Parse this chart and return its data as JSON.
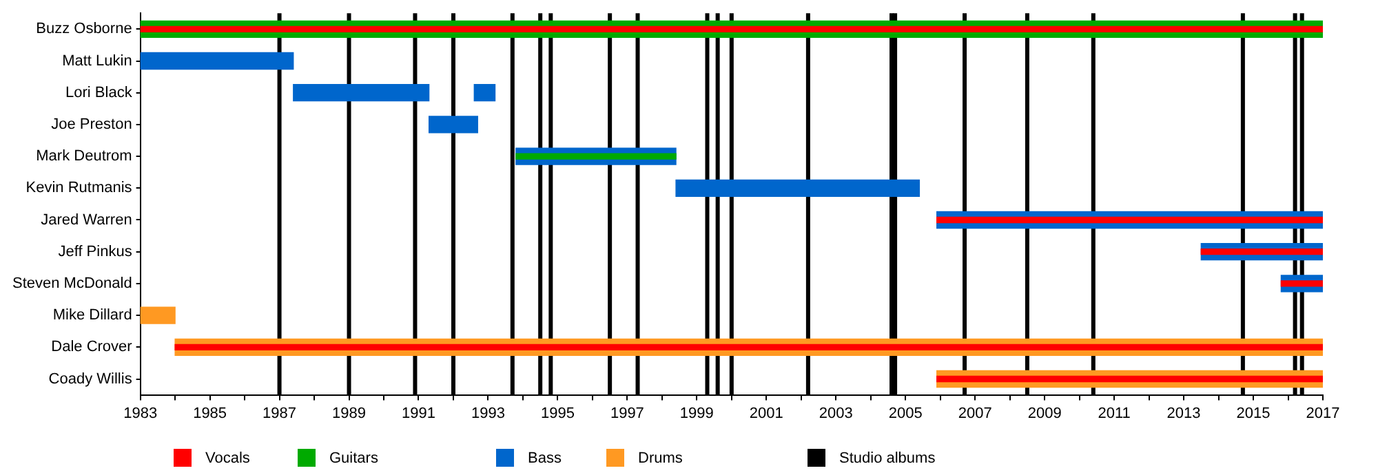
{
  "chart_data": {
    "type": "bar",
    "orientation": "horizontal",
    "legend": "bottom",
    "grid": false,
    "categories": [
      "Buzz Osborne",
      "Matt Lukin",
      "Lori Black",
      "Joe Preston",
      "Mark Deutrom",
      "Kevin Rutmanis",
      "Jared Warren",
      "Jeff Pinkus",
      "Steven McDonald",
      "Mike Dillard",
      "Dale Crover",
      "Coady Willis"
    ],
    "xlim": [
      1983,
      2017
    ],
    "xticks": [
      1983,
      {
        "value": 1984,
        "label": null
      },
      1985,
      {
        "value": 1986,
        "label": null
      },
      1987,
      {
        "value": 1988,
        "label": null
      },
      1989,
      {
        "value": 1990,
        "label": null
      },
      1991,
      {
        "value": 1992,
        "label": null
      },
      1993,
      {
        "value": 1994,
        "label": null
      },
      1995,
      {
        "value": 1996,
        "label": null
      },
      1997,
      {
        "value": 1998,
        "label": null
      },
      1999,
      {
        "value": 2000,
        "label": null
      },
      2001,
      {
        "value": 2002,
        "label": null
      },
      2003,
      {
        "value": 2004,
        "label": null
      },
      2005,
      {
        "value": 2006,
        "label": null
      },
      2007,
      {
        "value": 2008,
        "label": null
      },
      2009,
      {
        "value": 2010,
        "label": null
      },
      2011,
      {
        "value": 2012,
        "label": null
      },
      2013,
      {
        "value": 2014,
        "label": null
      },
      2015,
      {
        "value": 2016,
        "label": null
      },
      2017
    ],
    "series": [
      {
        "name": "Vocals",
        "color": "#ff0000",
        "base": [
          1983,
          null,
          null,
          null,
          null,
          null,
          2005.9,
          2013.5,
          2015.8,
          null,
          1984,
          2005.9
        ],
        "values": [
          34,
          null,
          null,
          null,
          null,
          null,
          11.1,
          3.5,
          1.2,
          null,
          33,
          11.1
        ]
      },
      {
        "name": "Guitars",
        "color": "#00aa00",
        "base": [
          1983,
          null,
          null,
          null,
          1993.8,
          null,
          null,
          null,
          null,
          null,
          null,
          null
        ],
        "values": [
          34,
          null,
          null,
          null,
          4.6,
          null,
          null,
          null,
          null,
          null,
          null,
          null
        ]
      },
      {
        "name": "Bass",
        "color": "#0066cc",
        "base": [
          null,
          1983,
          1987.4,
          1991.3,
          1993.8,
          1998.4,
          2005.9,
          2013.5,
          2015.8,
          null,
          null,
          null
        ],
        "values": [
          null,
          4.4,
          3.9,
          1.4,
          4.6,
          7.0,
          11.1,
          3.5,
          1.2,
          null,
          null,
          null
        ]
      },
      {
        "color": "#0066cc",
        "base": [
          null,
          null,
          1992.6,
          null,
          null,
          null,
          null,
          null,
          null,
          null,
          null,
          null
        ],
        "values": [
          null,
          null,
          0.6,
          null,
          null,
          null,
          null,
          null,
          null,
          null,
          null,
          null
        ]
      },
      {
        "name": "Drums",
        "color": "#ff9922",
        "base": [
          null,
          null,
          null,
          null,
          null,
          null,
          null,
          null,
          null,
          1983,
          1984,
          2005.9
        ],
        "values": [
          null,
          null,
          null,
          null,
          null,
          null,
          null,
          null,
          null,
          1.0,
          33,
          11.1
        ]
      }
    ],
    "ref_lines": [
      {
        "axis": "x",
        "value": 1987.0,
        "color": "#000000"
      },
      {
        "axis": "x",
        "value": 1989.0,
        "color": "#000000"
      },
      {
        "axis": "x",
        "value": 1990.9,
        "color": "#000000"
      },
      {
        "axis": "x",
        "value": 1992.0,
        "color": "#000000"
      },
      {
        "axis": "x",
        "value": 1993.7,
        "color": "#000000"
      },
      {
        "axis": "x",
        "value": 1994.5,
        "color": "#000000"
      },
      {
        "axis": "x",
        "value": 1994.8,
        "color": "#000000"
      },
      {
        "axis": "x",
        "value": 1996.5,
        "color": "#000000"
      },
      {
        "axis": "x",
        "value": 1997.3,
        "color": "#000000"
      },
      {
        "axis": "x",
        "value": 1999.3,
        "color": "#000000"
      },
      {
        "axis": "x",
        "value": 1999.6,
        "color": "#000000"
      },
      {
        "axis": "x",
        "value": 2000.0,
        "color": "#000000"
      },
      {
        "axis": "x",
        "value": 2002.2,
        "color": "#000000"
      },
      {
        "axis": "x",
        "value": 2004.6,
        "color": "#000000"
      },
      {
        "axis": "x",
        "value": 2004.7,
        "color": "#000000"
      },
      {
        "axis": "x",
        "value": 2006.7,
        "color": "#000000"
      },
      {
        "axis": "x",
        "value": 2008.5,
        "color": "#000000"
      },
      {
        "axis": "x",
        "value": 2010.4,
        "color": "#000000"
      },
      {
        "axis": "x",
        "value": 2014.7,
        "color": "#000000"
      },
      {
        "axis": "x",
        "value": 2016.2,
        "color": "#000000"
      },
      {
        "axis": "x",
        "value": 2016.4,
        "color": "#000000"
      }
    ],
    "annotations": [
      "Studio albums"
    ]
  }
}
